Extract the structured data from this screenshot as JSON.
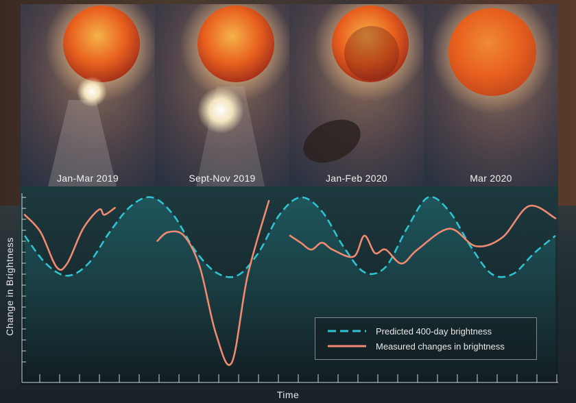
{
  "panels": [
    {
      "label": "Jan-Mar 2019"
    },
    {
      "label": "Sept-Nov  2019"
    },
    {
      "label": "Jan-Feb 2020"
    },
    {
      "label": "Mar 2020"
    }
  ],
  "colors": {
    "predicted": "#2fc2d0",
    "measured": "#f08a72",
    "star": "#e8601e",
    "axis": "#cfd6d8"
  },
  "chart_data": {
    "type": "line",
    "title": "",
    "xlabel": "Time",
    "ylabel": "Change in Brightness",
    "grid": false,
    "legend_position": "bottom-right",
    "legend": [
      "Predicted 400-day brightness",
      "Measured changes in brightness"
    ],
    "xlim": [
      0,
      100
    ],
    "ylim": [
      0,
      100
    ],
    "series": [
      {
        "name": "Predicted 400-day brightness",
        "style": "dashed",
        "x": [
          0,
          4,
          8,
          12,
          16,
          20,
          24,
          28,
          32,
          36,
          40,
          44,
          48,
          52,
          56,
          60,
          64,
          68,
          72,
          76,
          80,
          84,
          88,
          92,
          96,
          100
        ],
        "y": [
          78,
          62,
          55,
          62,
          80,
          95,
          100,
          90,
          70,
          57,
          55,
          68,
          90,
          100,
          92,
          72,
          57,
          60,
          82,
          100,
          92,
          72,
          56,
          56,
          68,
          78
        ]
      },
      {
        "name": "Measured changes in brightness",
        "style": "solid",
        "segments": [
          {
            "x": [
              0,
              3,
              6,
              8,
              11,
              14,
              15,
              17
            ],
            "y": [
              90,
              80,
              60,
              62,
              82,
              93,
              90,
              94
            ]
          },
          {
            "x": [
              25,
              27,
              30,
              33,
              36,
              39,
              42,
              46
            ],
            "y": [
              75,
              80,
              78,
              60,
              22,
              5,
              55,
              98
            ]
          },
          {
            "x": [
              50,
              52,
              54,
              56,
              58,
              62,
              64,
              66,
              68,
              71,
              74,
              80,
              85,
              90,
              95,
              100
            ],
            "y": [
              78,
              74,
              70,
              74,
              70,
              66,
              78,
              68,
              70,
              62,
              70,
              82,
              72,
              77,
              95,
              88
            ]
          }
        ]
      }
    ]
  }
}
